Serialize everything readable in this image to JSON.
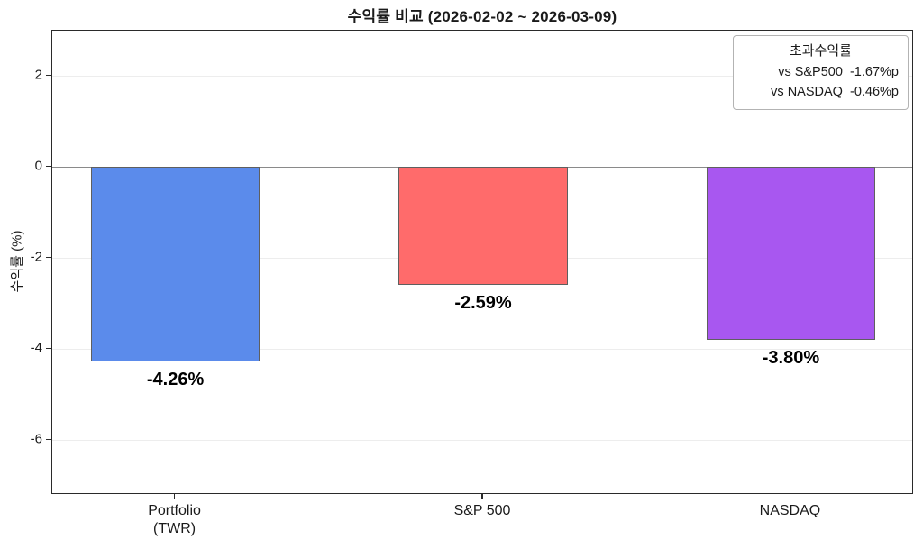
{
  "chart_data": {
    "type": "bar",
    "title": "수익률 비교 (2026-02-02 ~ 2026-03-09)",
    "ylabel": "수익률 (%)",
    "xlabel": "",
    "categories": [
      "Portfolio\n(TWR)",
      "S&P 500",
      "NASDAQ"
    ],
    "values": [
      -4.26,
      -2.59,
      -3.8
    ],
    "value_labels": [
      "-4.26%",
      "-2.59%",
      "-3.80%"
    ],
    "bar_colors": [
      "#5B8BEB",
      "#FF6B6B",
      "#A857F0"
    ],
    "yticks": [
      2,
      0,
      -2,
      -4,
      -6
    ],
    "ylim": [
      -7.2,
      3.0
    ],
    "xlim": [
      -0.4,
      2.4
    ],
    "bar_width": 0.55,
    "grid": true,
    "zero_line": true,
    "legend": {
      "position": "upper right",
      "title": "초과수익률",
      "entries": [
        "vs S&P500  -1.67%p",
        "vs NASDAQ  -0.46%p"
      ]
    }
  }
}
